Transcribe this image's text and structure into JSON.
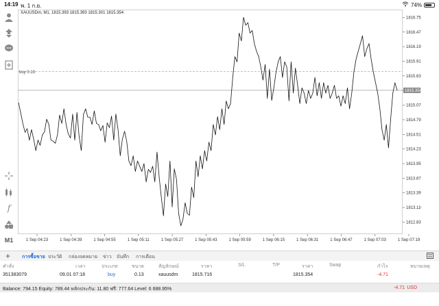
{
  "status": {
    "time": "14:19",
    "date": "พ. 1 ก.ย.",
    "battery": "74%",
    "battery_level": 0.74
  },
  "toolbar": {
    "timeframe": "M1"
  },
  "chart": {
    "symbol_info": "XAUUSDm, M1, 1815.393 1815.393 1815.301 1815.354",
    "order_label": "buy 0.13",
    "current_price_label": "1815.354"
  },
  "chart_data": {
    "type": "line",
    "symbol": "XAUUSDm",
    "timeframe": "M1",
    "ylim": [
      1812.6,
      1816.9
    ],
    "y_ticks": [
      1816.75,
      1816.47,
      1816.19,
      1815.91,
      1815.63,
      1815.35,
      1815.07,
      1814.79,
      1814.51,
      1814.23,
      1813.95,
      1813.67,
      1813.39,
      1813.11,
      1812.83
    ],
    "x_ticks": [
      "1 Sep 04:23",
      "1 Sep 04:39",
      "1 Sep 04:55",
      "1 Sep 05:11",
      "1 Sep 05:27",
      "1 Sep 05:43",
      "1 Sep 05:59",
      "1 Sep 06:15",
      "1 Sep 06:31",
      "1 Sep 06:47",
      "1 Sep 07:03",
      "1 Sep 07:19"
    ],
    "order_price": 1815.716,
    "current_price": 1815.354,
    "values": [
      1815.12,
      1814.92,
      1814.72,
      1814.55,
      1814.62,
      1814.4,
      1814.6,
      1814.42,
      1814.2,
      1814.4,
      1814.3,
      1814.5,
      1814.56,
      1814.8,
      1814.7,
      1814.4,
      1814.38,
      1814.34,
      1814.5,
      1814.88,
      1814.72,
      1815.0,
      1814.7,
      1814.52,
      1814.44,
      1814.9,
      1814.4,
      1814.93,
      1814.48,
      1814.2,
      1814.89,
      1815.0,
      1814.84,
      1814.84,
      1814.7,
      1814.96,
      1814.72,
      1814.7,
      1814.58,
      1814.68,
      1814.36,
      1814.73,
      1814.64,
      1814.86,
      1814.4,
      1814.9,
      1814.6,
      1814.1,
      1814.42,
      1814.57,
      1814.38,
      1814.0,
      1813.91,
      1814.1,
      1813.8,
      1814.0,
      1813.9,
      1813.8,
      1813.95,
      1813.6,
      1813.84,
      1813.78,
      1813.9,
      1813.6,
      1814.17,
      1813.7,
      1813.3,
      1812.95,
      1813.56,
      1813.32,
      1814.0,
      1813.12,
      1813.85,
      1813.65,
      1813.0,
      1812.76,
      1812.88,
      1813.2,
      1813.0,
      1812.96,
      1813.5,
      1813.3,
      1814.0,
      1813.7,
      1814.1,
      1813.85,
      1814.2,
      1814.0,
      1814.36,
      1814.2,
      1814.7,
      1814.5,
      1814.85,
      1814.6,
      1815.0,
      1814.7,
      1815.15,
      1815.0,
      1815.1,
      1815.6,
      1816.0,
      1815.9,
      1816.45,
      1816.3,
      1816.75,
      1816.6,
      1816.65,
      1816.45,
      1816.5,
      1816.25,
      1816.1,
      1816.0,
      1815.8,
      1815.55,
      1815.85,
      1815.2,
      1815.76,
      1815.16,
      1815.4,
      1815.7,
      1815.9,
      1816.0,
      1815.6,
      1815.9,
      1815.8,
      1815.15,
      1815.9,
      1815.3,
      1815.78,
      1815.45,
      1815.1,
      1815.4,
      1815.3,
      1815.1,
      1815.35,
      1815.2,
      1815.3,
      1815.6,
      1815.25,
      1815.5,
      1815.2,
      1815.5,
      1815.3,
      1815.45,
      1815.2,
      1815.3,
      1815.45,
      1815.2,
      1815.25,
      1815.05,
      1815.25,
      1815.1,
      1815.4,
      1815.0,
      1815.3,
      1815.7,
      1815.95,
      1816.1,
      1816.25,
      1816.4,
      1816.0,
      1816.15,
      1816.25,
      1815.95,
      1815.7,
      1815.5,
      1815.3,
      1815.0,
      1814.6,
      1814.4,
      1814.7,
      1814.25,
      1814.8,
      1815.3,
      1815.5,
      1815.35
    ]
  },
  "tabs": [
    {
      "label": "การซื้อขาย",
      "active": true
    },
    {
      "label": "ประวัติ"
    },
    {
      "label": "กล่องจดหมาย"
    },
    {
      "label": "ข่าว"
    },
    {
      "label": "บันทึก"
    },
    {
      "label": "การเตือน"
    }
  ],
  "table": {
    "headers": {
      "order": "คำสั่ง",
      "time": "เวลา",
      "type": "ประเภท",
      "volume": "ขนาด",
      "symbol": "สัญลักษณ์",
      "price": "ราคา",
      "sl": "S/L",
      "tp": "T/P",
      "price2": "ราคา",
      "swap": "Swap",
      "profit": "กำไร",
      "comment": "หมายเหตุ"
    },
    "row": {
      "order": "351383079",
      "time": "09.01 07:18",
      "type": "buy",
      "volume": "0.13",
      "symbol": "xauusdm",
      "price": "1815.716",
      "price2": "1815.354",
      "profit": "-4.71"
    }
  },
  "balance": {
    "text": "Balance: 794.15 Equity: 789.44 หลักประกัน: 11.80 ฟรี: 777.64 Level: 6 688.95%",
    "profit": "-4.71",
    "currency": "USD"
  },
  "colors": {
    "accent": "#1e6bd6",
    "loss": "#e03030",
    "line": "#111111"
  }
}
